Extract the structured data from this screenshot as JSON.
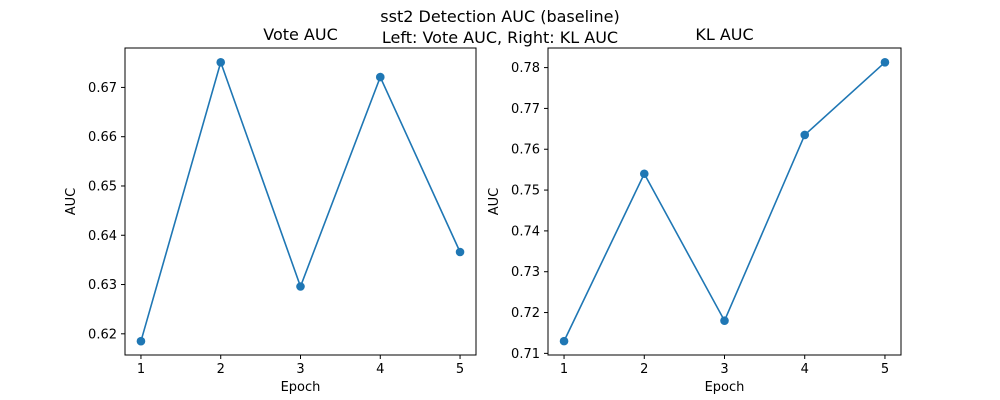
{
  "figure": {
    "suptitle_line1": "sst2 Detection AUC (baseline)",
    "suptitle_line2": "Left: Vote AUC, Right: KL AUC"
  },
  "chart_data": [
    {
      "type": "line",
      "title": "Vote AUC",
      "xlabel": "Epoch",
      "ylabel": "AUC",
      "x": [
        1,
        2,
        3,
        4,
        5
      ],
      "series": [
        {
          "values": [
            0.6185,
            0.6751,
            0.6296,
            0.6721,
            0.6366
          ],
          "color": "#1f77b4",
          "marker": "circle"
        }
      ],
      "xlim": [
        0.8,
        5.2
      ],
      "ylim": [
        0.6157,
        0.678
      ],
      "xticks": [
        1,
        2,
        3,
        4,
        5
      ],
      "yticks": [
        0.62,
        0.63,
        0.64,
        0.65,
        0.66,
        0.67
      ],
      "ytick_labels": [
        "0.62",
        "0.63",
        "0.64",
        "0.65",
        "0.66",
        "0.67"
      ],
      "grid": false
    },
    {
      "type": "line",
      "title": "KL AUC",
      "xlabel": "Epoch",
      "ylabel": "AUC",
      "x": [
        1,
        2,
        3,
        4,
        5
      ],
      "series": [
        {
          "values": [
            0.713,
            0.754,
            0.718,
            0.7635,
            0.7813
          ],
          "color": "#1f77b4",
          "marker": "circle"
        }
      ],
      "xlim": [
        0.8,
        5.2
      ],
      "ylim": [
        0.7096,
        0.7848
      ],
      "xticks": [
        1,
        2,
        3,
        4,
        5
      ],
      "yticks": [
        0.71,
        0.72,
        0.73,
        0.74,
        0.75,
        0.76,
        0.77,
        0.78
      ],
      "ytick_labels": [
        "0.71",
        "0.72",
        "0.73",
        "0.74",
        "0.75",
        "0.76",
        "0.77",
        "0.78"
      ],
      "grid": false
    }
  ]
}
